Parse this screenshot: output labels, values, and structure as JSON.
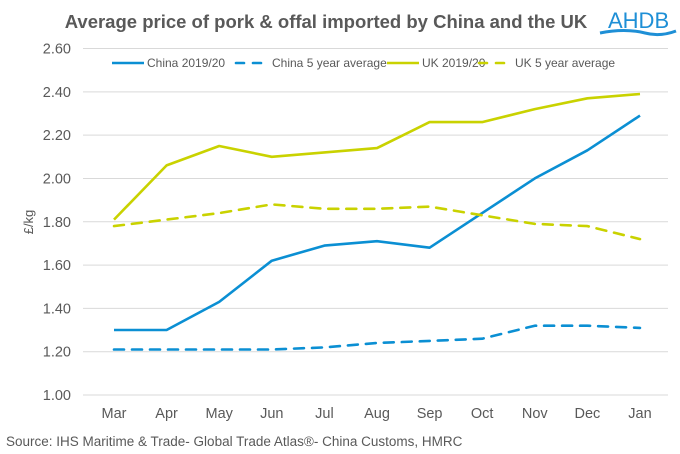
{
  "logo": {
    "text": "AHDB",
    "color": "#1e8fd6"
  },
  "source_note": "Source: IHS Maritime & Trade- Global Trade Atlas®- China Customs, HMRC",
  "chart_data": {
    "type": "line",
    "title": "Average price of pork & offal imported by China and the UK",
    "xlabel": "",
    "ylabel": "£/kg",
    "ylim": [
      1.0,
      2.6
    ],
    "yticks": [
      1.0,
      1.2,
      1.4,
      1.6,
      1.8,
      2.0,
      2.2,
      2.4,
      2.6
    ],
    "ytick_labels": [
      "1.00",
      "1.20",
      "1.40",
      "1.60",
      "1.80",
      "2.00",
      "2.20",
      "2.40",
      "2.60"
    ],
    "grid": true,
    "legend_position": "top",
    "categories": [
      "Mar",
      "Apr",
      "May",
      "Jun",
      "Jul",
      "Aug",
      "Sep",
      "Oct",
      "Nov",
      "Dec",
      "Jan"
    ],
    "series": [
      {
        "name": "China 2019/20",
        "color": "#0b8fd3",
        "dash": "solid",
        "values": [
          1.3,
          1.3,
          1.43,
          1.62,
          1.69,
          1.71,
          1.68,
          1.84,
          2.0,
          2.13,
          2.29
        ]
      },
      {
        "name": "China 5 year average",
        "color": "#0b8fd3",
        "dash": "dashed",
        "values": [
          1.21,
          1.21,
          1.21,
          1.21,
          1.22,
          1.24,
          1.25,
          1.26,
          1.32,
          1.32,
          1.31
        ]
      },
      {
        "name": "UK 2019/20",
        "color": "#c9d200",
        "dash": "solid",
        "values": [
          1.81,
          2.06,
          2.15,
          2.1,
          2.12,
          2.14,
          2.26,
          2.26,
          2.32,
          2.37,
          2.39
        ]
      },
      {
        "name": "UK 5 year average",
        "color": "#c9d200",
        "dash": "dashed",
        "values": [
          1.78,
          1.81,
          1.84,
          1.88,
          1.86,
          1.86,
          1.87,
          1.83,
          1.79,
          1.78,
          1.72
        ]
      }
    ]
  }
}
